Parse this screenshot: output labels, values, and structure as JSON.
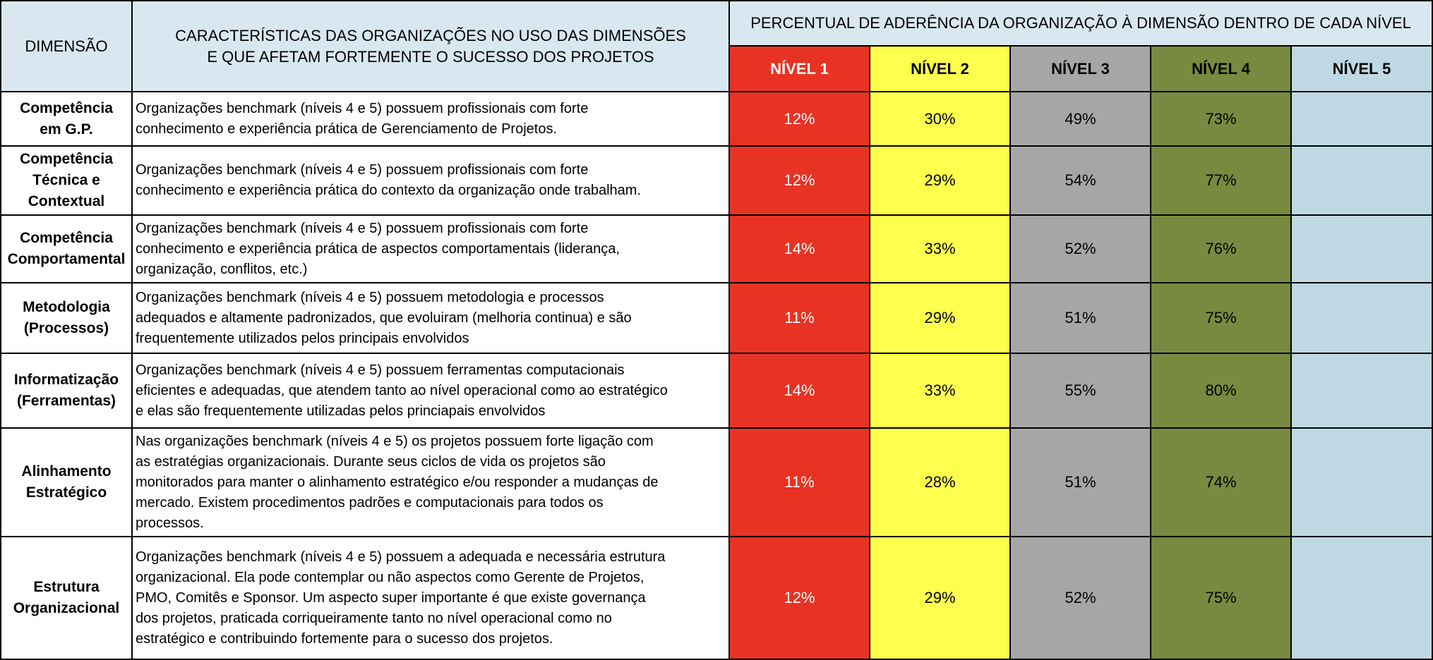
{
  "header": {
    "dimension": "DIMENSÃO",
    "characteristics_line1": "CARACTERÍSTICAS DAS ORGANIZAÇÕES NO USO DAS DIMENSÕES",
    "characteristics_line2": "E QUE AFETAM FORTEMENTE O SUCESSO DOS PROJETOS",
    "percentual": "PERCENTUAL DE ADERÊNCIA DA ORGANIZAÇÃO À DIMENSÃO DENTRO DE CADA NÍVEL",
    "levels": [
      "NÍVEL 1",
      "NÍVEL 2",
      "NÍVEL 3",
      "NÍVEL 4",
      "NÍVEL 5"
    ]
  },
  "colors": {
    "header_bg": "#d9e8f0",
    "level1": "#e83223",
    "level2": "#ffff4d",
    "level3": "#a6a6a6",
    "level4": "#778a3f",
    "level5": "#bed9e3"
  },
  "rows": [
    {
      "dimension_lines": [
        "Competência",
        "em G.P."
      ],
      "description_lines": [
        "Organizações benchmark (níveis 4 e 5) possuem profissionais com forte",
        "conhecimento e experiência prática de Gerenciamento de Projetos."
      ],
      "values": [
        "12%",
        "30%",
        "49%",
        "73%",
        ""
      ]
    },
    {
      "dimension_lines": [
        "Competência",
        "Técnica e",
        "Contextual"
      ],
      "description_lines": [
        "Organizações benchmark (níveis 4 e 5) possuem profissionais com forte",
        "conhecimento e experiência prática do contexto da organização onde trabalham."
      ],
      "values": [
        "12%",
        "29%",
        "54%",
        "77%",
        ""
      ]
    },
    {
      "dimension_lines": [
        "Competência",
        "Comportamental"
      ],
      "description_lines": [
        "Organizações benchmark (níveis 4 e 5) possuem profissionais com forte",
        "conhecimento e experiência prática de aspectos comportamentais (liderança,",
        "organização, conflitos, etc.)"
      ],
      "values": [
        "14%",
        "33%",
        "52%",
        "76%",
        ""
      ]
    },
    {
      "dimension_lines": [
        "Metodologia",
        "(Processos)"
      ],
      "description_lines": [
        "Organizações benchmark (níveis 4 e 5) possuem metodologia e processos",
        "adequados e altamente padronizados, que evoluiram (melhoria continua) e são",
        "frequentemente utilizados pelos principais envolvidos"
      ],
      "values": [
        "11%",
        "29%",
        "51%",
        "75%",
        ""
      ]
    },
    {
      "dimension_lines": [
        "Informatização",
        "(Ferramentas)"
      ],
      "description_lines": [
        "Organizações benchmark (níveis 4 e 5) possuem ferramentas computacionais",
        "eficientes e adequadas, que atendem tanto ao nível operacional como ao estratégico",
        "e elas são frequentemente utilizadas pelos princiapais envolvidos"
      ],
      "values": [
        "14%",
        "33%",
        "55%",
        "80%",
        ""
      ]
    },
    {
      "dimension_lines": [
        "Alinhamento",
        "Estratégico"
      ],
      "description_lines": [
        "Nas organizações benchmark (níveis 4 e 5) os projetos possuem forte ligação com",
        "as estratégias organizacionais. Durante seus ciclos de vida os projetos são",
        "monitorados para manter o alinhamento estratégico e/ou responder a mudanças de",
        "mercado. Existem procedimentos padrões e computacionais para todos os",
        "processos."
      ],
      "values": [
        "11%",
        "28%",
        "51%",
        "74%",
        ""
      ]
    },
    {
      "dimension_lines": [
        "Estrutura",
        "Organizacional"
      ],
      "description_lines": [
        "Organizações benchmark (níveis 4 e 5) possuem a adequada e necessária estrutura",
        "organizacional. Ela pode contemplar ou não aspectos como Gerente de Projetos,",
        "PMO, Comitês e Sponsor. Um aspecto super importante é que existe governança",
        "dos projetos, praticada corriqueiramente tanto no nível operacional como no",
        "estratégico e contribuindo fortemente para o sucesso dos projetos."
      ],
      "values": [
        "12%",
        "29%",
        "52%",
        "75%",
        ""
      ]
    }
  ]
}
